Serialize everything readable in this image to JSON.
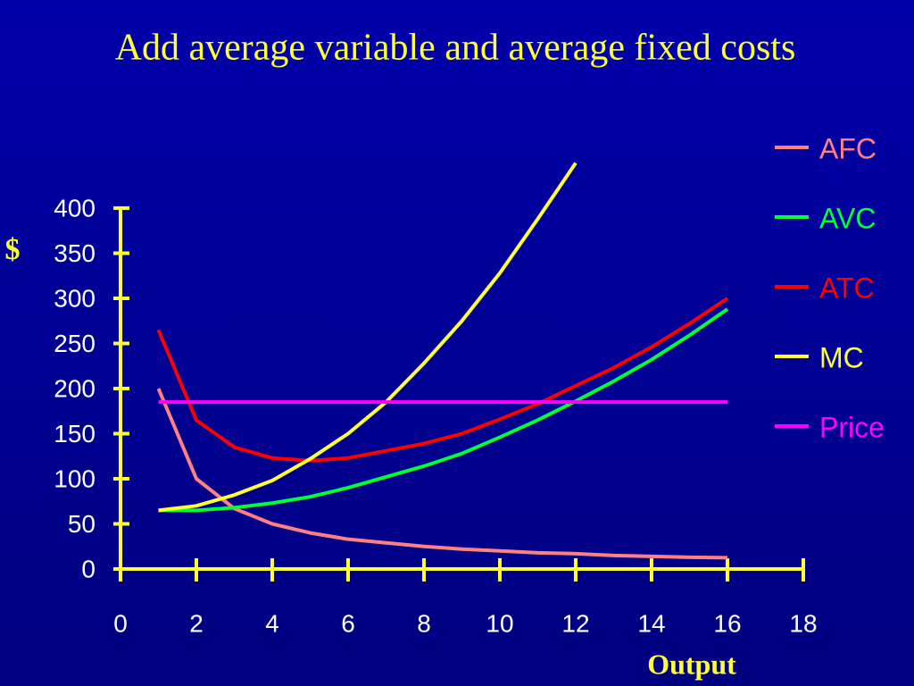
{
  "chart_data": {
    "type": "line",
    "title": "Add average variable and average fixed costs",
    "xlabel": "Output",
    "ylabel": "$",
    "x": [
      1,
      2,
      3,
      4,
      5,
      6,
      7,
      8,
      9,
      10,
      11,
      12,
      13,
      14,
      15,
      16
    ],
    "series": [
      {
        "name": "AFC",
        "color": "#ff8080",
        "values": [
          200,
          100,
          67,
          50,
          40,
          33,
          29,
          25,
          22,
          20,
          18,
          17,
          15,
          14,
          13,
          12.5
        ]
      },
      {
        "name": "AVC",
        "color": "#00ff33",
        "values": [
          65,
          65,
          68,
          73,
          80,
          90,
          102,
          114,
          128,
          146,
          165,
          186,
          208,
          232,
          259,
          288
        ]
      },
      {
        "name": "ATC",
        "color": "#ff0000",
        "values": [
          265,
          165,
          135,
          123,
          120,
          123,
          131,
          139,
          150,
          166,
          183,
          203,
          223,
          246,
          272,
          300
        ]
      },
      {
        "name": "MC",
        "color": "#ffff33",
        "values": [
          65,
          70,
          82,
          98,
          122,
          150,
          185,
          228,
          275,
          328,
          388,
          450,
          null,
          null,
          null,
          null
        ]
      },
      {
        "name": "Price",
        "color": "#ff00ff",
        "values": [
          185,
          185,
          185,
          185,
          185,
          185,
          185,
          185,
          185,
          185,
          185,
          185,
          185,
          185,
          185,
          185
        ]
      }
    ],
    "xlim": [
      0,
      18
    ],
    "xticks": [
      0,
      2,
      4,
      6,
      8,
      10,
      12,
      14,
      16,
      18
    ],
    "ylim": [
      0,
      400
    ],
    "yticks": [
      0,
      50,
      100,
      150,
      200,
      250,
      300,
      350,
      400
    ],
    "axis_color": "#ffff33",
    "legend": "right"
  }
}
